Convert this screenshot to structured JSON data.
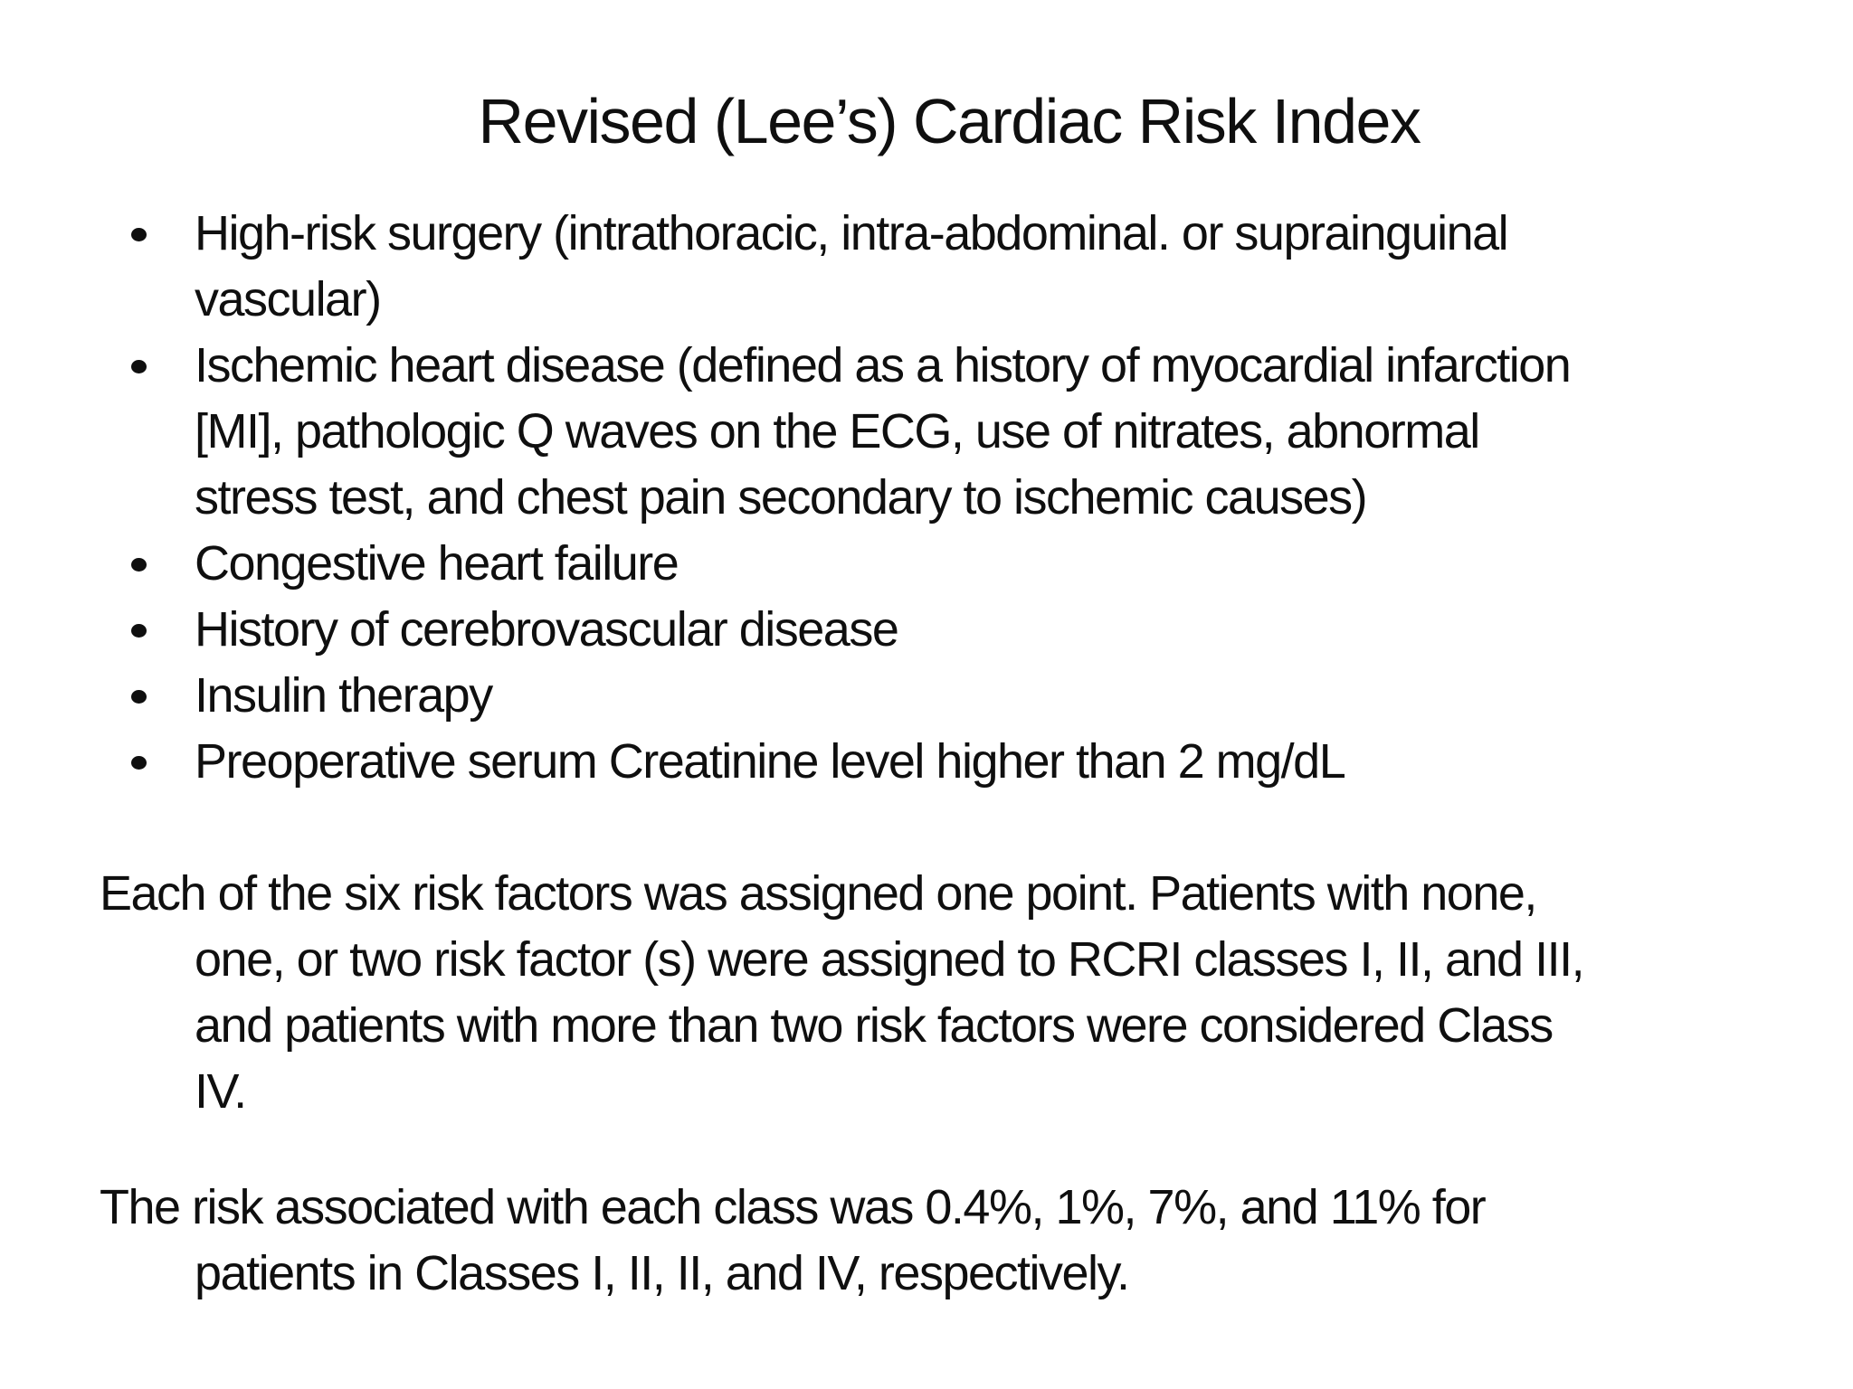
{
  "slide": {
    "background_color": "#ffffff",
    "text_color": "#0f0f0f",
    "title": "Revised (Lee’s) Cardiac Risk Index",
    "bullets": [
      {
        "lines": [
          "High-risk surgery (intrathoracic, intra-abdominal. or suprainguinal",
          "vascular)"
        ]
      },
      {
        "lines": [
          "Ischemic heart disease (defined as a history of myocardial infarction",
          "[MI], pathologic Q waves on the ECG, use of nitrates, abnormal",
          "stress test, and chest pain secondary to ischemic causes)"
        ]
      },
      {
        "lines": [
          "Congestive heart failure"
        ]
      },
      {
        "lines": [
          "History of cerebrovascular disease"
        ]
      },
      {
        "lines": [
          "Insulin therapy"
        ]
      },
      {
        "lines": [
          "Preoperative serum Creatinine level higher than 2 mg/dL"
        ]
      }
    ],
    "paragraphs": [
      {
        "lines": [
          "Each of the six risk factors was assigned one point. Patients with none,",
          "one, or two risk factor (s) were assigned to RCRI classes I, II, and III,",
          "and patients with more than two risk factors were considered Class",
          "IV."
        ]
      },
      {
        "lines": [
          "The risk associated with each class was 0.4%, 1%, 7%, and 11% for",
          "patients in Classes I, II, II, and IV, respectively."
        ]
      }
    ]
  }
}
